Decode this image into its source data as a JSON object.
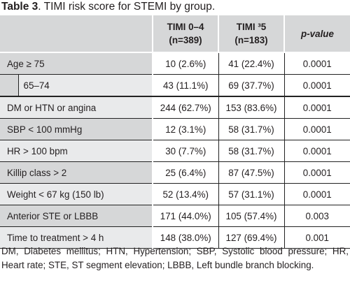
{
  "caption": {
    "label": "Table 3",
    "text": ". TIMI risk score for STEMI by group."
  },
  "header": {
    "col1_line1": "TIMI 0–4",
    "col1_line2": "(n=389)",
    "col2_line1": "TIMI ³5",
    "col2_line2": "(n=183)",
    "col3": "p-value"
  },
  "rows": [
    {
      "label": "Age ≥ 75",
      "g1": "10 (2.6%)",
      "g2": "41 (22.4%)",
      "p": "0.0001"
    },
    {
      "label": "65–74",
      "g1": "43 (11.1%)",
      "g2": "69 (37.7%)",
      "p": "0.0001"
    },
    {
      "label": "DM or HTN or angina",
      "g1": "244 (62.7%)",
      "g2": "153 (83.6%)",
      "p": "0.0001"
    },
    {
      "label": "SBP < 100 mmHg",
      "g1": "12 (3.1%)",
      "g2": "58 (31.7%)",
      "p": "0.0001"
    },
    {
      "label": "HR > 100 bpm",
      "g1": "30 (7.7%)",
      "g2": "58 (31.7%)",
      "p": "0.0001"
    },
    {
      "label": "Killip class > 2",
      "g1": "25 (6.4%)",
      "g2": "87 (47.5%)",
      "p": "0.0001"
    },
    {
      "label": "Weight < 67 kg (150 lb)",
      "g1": "52 (13.4%)",
      "g2": "57 (31.1%)",
      "p": "0.0001"
    },
    {
      "label": "Anterior STE or LBBB",
      "g1": "171 (44.0%)",
      "g2": "105 (57.4%)",
      "p": "0.003"
    },
    {
      "label": "Time to treatment > 4 h",
      "g1": "148 (38.0%)",
      "g2": "127 (69.4%)",
      "p": "0.001"
    }
  ],
  "footnote": "DM, Diabetes mellitus; HTN, Hypertension; SBP, Systolic blood pressure; HR, Heart rate; STE, ST segment elevation; LBBB, Left bundle branch blocking."
}
